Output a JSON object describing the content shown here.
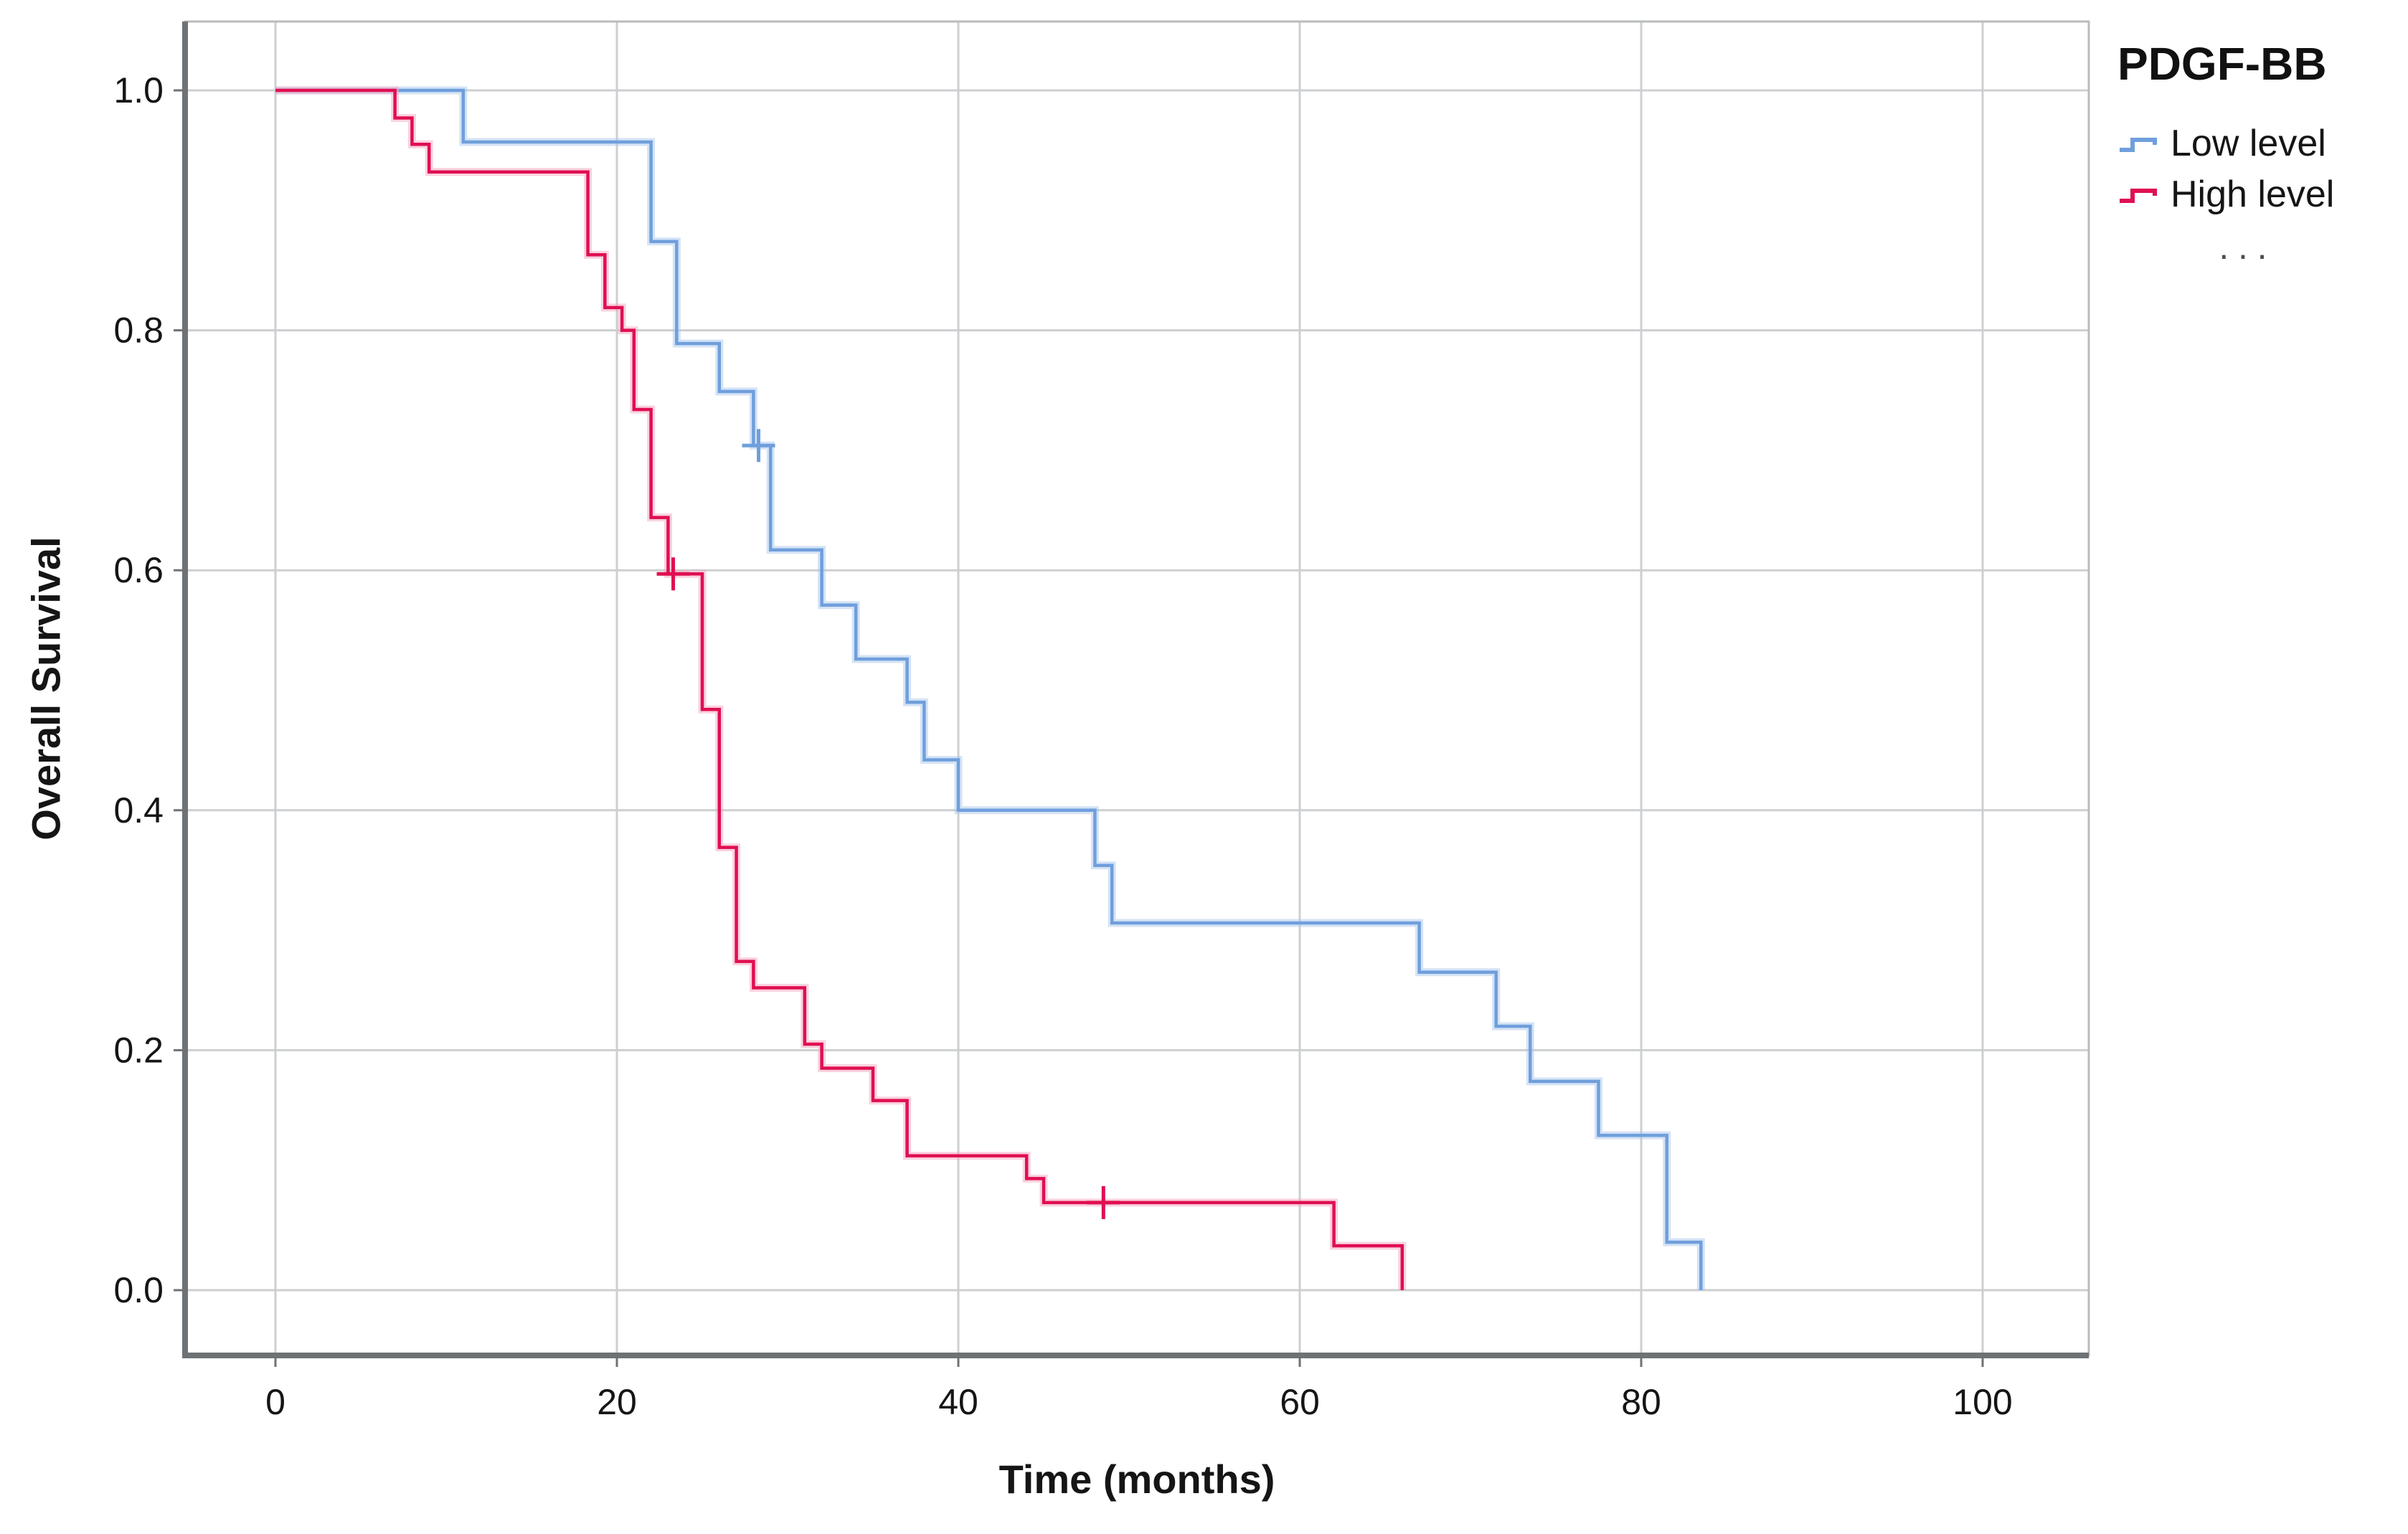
{
  "figure": {
    "background": "#ffffff"
  },
  "chart_data": {
    "type": "line",
    "subtype": "kaplan_meier_step",
    "title": "",
    "xlabel": "Time (months)",
    "ylabel": "Overall Survival",
    "xlim": [
      -5.3,
      106.2
    ],
    "ylim": [
      -0.054,
      1.057
    ],
    "grid": true,
    "x_ticks": [
      {
        "label": "0",
        "value": 0
      },
      {
        "label": "20",
        "value": 20
      },
      {
        "label": "40",
        "value": 40
      },
      {
        "label": "60",
        "value": 60
      },
      {
        "label": "80",
        "value": 80
      },
      {
        "label": "100",
        "value": 100
      }
    ],
    "y_ticks": [
      {
        "label": "1.0",
        "value": 1.0
      },
      {
        "label": "0.8",
        "value": 0.8
      },
      {
        "label": "0.6",
        "value": 0.6
      },
      {
        "label": "0.4",
        "value": 0.4
      },
      {
        "label": "0.2",
        "value": 0.2
      },
      {
        "label": "0.0",
        "value": 0.0
      }
    ],
    "legend": {
      "title": "PDGF-BB",
      "position": "top-right-outside",
      "ellipsis": "···"
    },
    "series": [
      {
        "name": "Low level",
        "color": "#6f9fdc",
        "halo": "#aac7ee",
        "points": [
          [
            0,
            1.0
          ],
          [
            11,
            0.957
          ],
          [
            22,
            0.874
          ],
          [
            23.5,
            0.789
          ],
          [
            26,
            0.749
          ],
          [
            28,
            0.704
          ],
          [
            29,
            0.617
          ],
          [
            32,
            0.571
          ],
          [
            34,
            0.526
          ],
          [
            37,
            0.49
          ],
          [
            38,
            0.442
          ],
          [
            40,
            0.4
          ],
          [
            48,
            0.354
          ],
          [
            49,
            0.306
          ],
          [
            67,
            0.265
          ],
          [
            71.5,
            0.22
          ],
          [
            73.5,
            0.174
          ],
          [
            77.5,
            0.129
          ],
          [
            81.5,
            0.04
          ],
          [
            83.5,
            0
          ]
        ],
        "censored": [
          [
            28.3,
            0.704
          ]
        ]
      },
      {
        "name": "High level",
        "color": "#e00f52",
        "halo": "#f3a6bf",
        "points": [
          [
            0,
            1.0
          ],
          [
            7,
            0.977
          ],
          [
            8,
            0.955
          ],
          [
            9,
            0.932
          ],
          [
            18.3,
            0.863
          ],
          [
            19.3,
            0.819
          ],
          [
            20.3,
            0.8
          ],
          [
            21,
            0.734
          ],
          [
            22,
            0.644
          ],
          [
            23,
            0.597
          ],
          [
            25,
            0.484
          ],
          [
            26,
            0.369
          ],
          [
            27,
            0.274
          ],
          [
            28,
            0.252
          ],
          [
            31,
            0.205
          ],
          [
            32,
            0.185
          ],
          [
            35,
            0.158
          ],
          [
            37,
            0.112
          ],
          [
            44,
            0.093
          ],
          [
            45,
            0.073
          ],
          [
            62,
            0.037
          ],
          [
            66,
            0
          ]
        ],
        "censored": [
          [
            23.3,
            0.597
          ],
          [
            48.5,
            0.073
          ]
        ]
      }
    ],
    "colors": {
      "gridline": "#cdcfd1",
      "frame": "#b9bcbe",
      "axis": "#6e7275",
      "text": "#151515",
      "muted": "#4d4d4d"
    }
  }
}
